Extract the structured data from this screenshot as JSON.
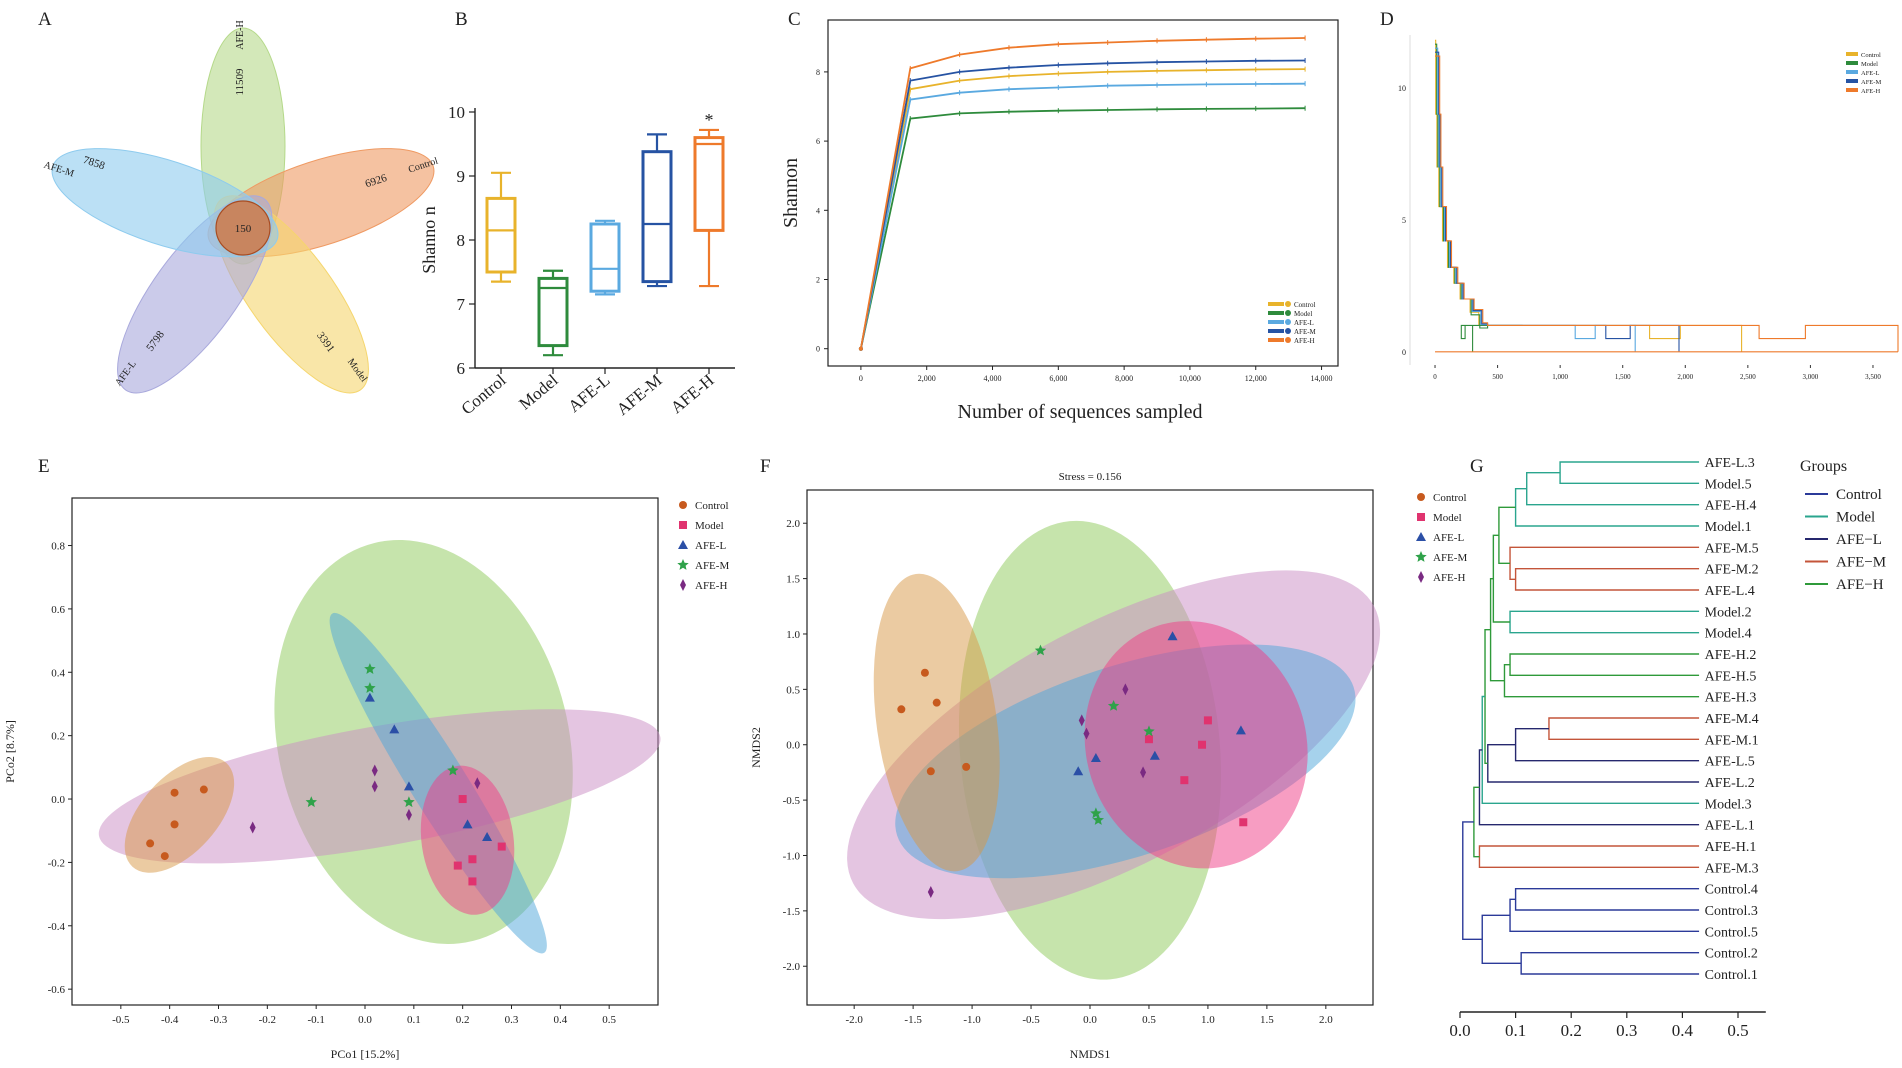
{
  "panel_letters": [
    "A",
    "B",
    "C",
    "D",
    "E",
    "F",
    "G"
  ],
  "chart_data": [
    {
      "panel": "A",
      "type": "venn",
      "sets": [
        {
          "name": "AFE-H",
          "unique": "11509",
          "color": "#b5d98a"
        },
        {
          "name": "Control",
          "unique": "6926",
          "color": "#ef9a63"
        },
        {
          "name": "Model",
          "unique": "3391",
          "color": "#f5d66e"
        },
        {
          "name": "AFE-L",
          "unique": "5798",
          "color": "#a9a9dc"
        },
        {
          "name": "AFE-M",
          "unique": "7858",
          "color": "#8ecbee"
        }
      ],
      "shared": "150"
    },
    {
      "panel": "B",
      "type": "box",
      "ylabel": "Shanno n",
      "ylim": [
        6,
        10
      ],
      "yticks": [
        "6",
        "7",
        "8",
        "9",
        "10"
      ],
      "categories": [
        "Control",
        "Model",
        "AFE-L",
        "AFE-M",
        "AFE-H"
      ],
      "colors": [
        "#e8b32b",
        "#2e8b3c",
        "#5aa9e0",
        "#2653a3",
        "#ee7a2b"
      ],
      "boxes": [
        {
          "min": 7.35,
          "q1": 7.5,
          "median": 8.15,
          "q3": 8.65,
          "max": 9.05
        },
        {
          "min": 6.2,
          "q1": 6.35,
          "median": 7.25,
          "q3": 7.4,
          "max": 7.52
        },
        {
          "min": 7.15,
          "q1": 7.2,
          "median": 7.55,
          "q3": 8.25,
          "max": 8.3
        },
        {
          "min": 7.28,
          "q1": 7.35,
          "median": 8.25,
          "q3": 9.38,
          "max": 9.65
        },
        {
          "min": 7.28,
          "q1": 8.15,
          "median": 9.5,
          "q3": 9.6,
          "max": 9.72
        }
      ],
      "annotation": "*"
    },
    {
      "panel": "C",
      "type": "line",
      "xlabel": "Number of sequences sampled",
      "ylabel": "Shannon",
      "xlim": [
        -1000,
        14500
      ],
      "ylim": [
        -0.5,
        9.5
      ],
      "xticks": [
        "0",
        "2,000",
        "4,000",
        "6,000",
        "8,000",
        "10,000",
        "12,000",
        "14,000"
      ],
      "yticks": [
        "0",
        "2",
        "4",
        "6",
        "8"
      ],
      "x": [
        0,
        1500,
        3000,
        4500,
        6000,
        7500,
        9000,
        10500,
        12000,
        13500
      ],
      "series": [
        {
          "name": "Control",
          "color": "#e8b32b",
          "values": [
            0,
            7.5,
            7.75,
            7.88,
            7.95,
            8.0,
            8.03,
            8.05,
            8.07,
            8.08
          ]
        },
        {
          "name": "Model",
          "color": "#2e8b3c",
          "values": [
            0,
            6.65,
            6.8,
            6.85,
            6.88,
            6.9,
            6.92,
            6.93,
            6.94,
            6.95
          ]
        },
        {
          "name": "AFE-L",
          "color": "#5aa9e0",
          "values": [
            0,
            7.2,
            7.4,
            7.5,
            7.55,
            7.6,
            7.62,
            7.64,
            7.65,
            7.66
          ]
        },
        {
          "name": "AFE-M",
          "color": "#2653a3",
          "values": [
            0,
            7.75,
            8.0,
            8.12,
            8.2,
            8.25,
            8.28,
            8.3,
            8.32,
            8.33
          ]
        },
        {
          "name": "AFE-H",
          "color": "#ee7a2b",
          "values": [
            0,
            8.1,
            8.5,
            8.7,
            8.8,
            8.85,
            8.9,
            8.93,
            8.96,
            8.98
          ]
        }
      ]
    },
    {
      "panel": "D",
      "type": "line",
      "xlim": [
        -200,
        3700
      ],
      "ylim": [
        -0.5,
        12
      ],
      "xticks": [
        "0",
        "500",
        "1,000",
        "1,500",
        "2,000",
        "2,500",
        "3,000",
        "3,500"
      ],
      "yticks": [
        "0",
        "5",
        "10"
      ],
      "series": [
        {
          "name": "Control",
          "color": "#e8b32b",
          "end": 2450
        },
        {
          "name": "Model",
          "color": "#2e8b3c",
          "end": 300
        },
        {
          "name": "AFE-L",
          "color": "#5aa9e0",
          "end": 1600
        },
        {
          "name": "AFE-M",
          "color": "#2653a3",
          "end": 1950
        },
        {
          "name": "AFE-H",
          "color": "#ee7a2b",
          "end": 3700
        }
      ]
    },
    {
      "panel": "E",
      "type": "scatter",
      "xlabel": "PCo1 [15.2%]",
      "ylabel": "PCo2 [8.7%]",
      "xlim": [
        -0.6,
        0.6
      ],
      "ylim": [
        -0.65,
        0.95
      ],
      "xticks": [
        "-0.5",
        "-0.4",
        "-0.3",
        "-0.2",
        "-0.1",
        "0.0",
        "0.1",
        "0.2",
        "0.3",
        "0.4",
        "0.5"
      ],
      "yticks": [
        "-0.6",
        "-0.4",
        "-0.2",
        "0.0",
        "0.2",
        "0.4",
        "0.6",
        "0.8"
      ],
      "groups": [
        {
          "name": "Control",
          "color": "#c75a1e",
          "points": [
            [
              -0.39,
              0.02
            ],
            [
              -0.33,
              0.03
            ],
            [
              -0.39,
              -0.08
            ],
            [
              -0.44,
              -0.14
            ],
            [
              -0.41,
              -0.18
            ]
          ]
        },
        {
          "name": "Model",
          "color": "#e0336f",
          "points": [
            [
              0.2,
              0.0
            ],
            [
              0.28,
              -0.15
            ],
            [
              0.22,
              -0.19
            ],
            [
              0.19,
              -0.21
            ],
            [
              0.22,
              -0.26
            ]
          ]
        },
        {
          "name": "AFE-L",
          "color": "#2b4fa6",
          "points": [
            [
              0.01,
              0.32
            ],
            [
              0.06,
              0.22
            ],
            [
              0.09,
              0.04
            ],
            [
              0.25,
              -0.12
            ],
            [
              0.21,
              -0.08
            ]
          ]
        },
        {
          "name": "AFE-M",
          "color": "#2fa24a",
          "points": [
            [
              0.01,
              0.41
            ],
            [
              0.01,
              0.35
            ],
            [
              -0.11,
              -0.01
            ],
            [
              0.09,
              -0.01
            ],
            [
              0.18,
              0.09
            ]
          ]
        },
        {
          "name": "AFE-H",
          "color": "#7a2a82",
          "points": [
            [
              0.02,
              0.09
            ],
            [
              0.02,
              0.04
            ],
            [
              0.09,
              -0.05
            ],
            [
              0.23,
              0.05
            ],
            [
              -0.23,
              -0.09
            ]
          ]
        }
      ]
    },
    {
      "panel": "F",
      "type": "scatter",
      "title": "Stress = 0.156",
      "xlabel": "NMDS1",
      "ylabel": "NMDS2",
      "xlim": [
        -2.4,
        2.4
      ],
      "ylim": [
        -2.35,
        2.3
      ],
      "xticks": [
        "-2.0",
        "-1.5",
        "-1.0",
        "-0.5",
        "0.0",
        "0.5",
        "1.0",
        "1.5",
        "2.0"
      ],
      "yticks": [
        "-2.0",
        "-1.5",
        "-1.0",
        "-0.5",
        "0.0",
        "0.5",
        "1.0",
        "1.5",
        "2.0"
      ],
      "groups": [
        {
          "name": "Control",
          "color": "#c75a1e",
          "points": [
            [
              -1.4,
              0.65
            ],
            [
              -1.3,
              0.38
            ],
            [
              -1.6,
              0.32
            ],
            [
              -1.35,
              -0.24
            ],
            [
              -1.05,
              -0.2
            ]
          ]
        },
        {
          "name": "Model",
          "color": "#e0336f",
          "points": [
            [
              1.0,
              0.22
            ],
            [
              0.95,
              0.0
            ],
            [
              0.5,
              0.05
            ],
            [
              0.8,
              -0.32
            ],
            [
              1.3,
              -0.7
            ]
          ]
        },
        {
          "name": "AFE-L",
          "color": "#2b4fa6",
          "points": [
            [
              0.7,
              0.98
            ],
            [
              1.28,
              0.13
            ],
            [
              0.05,
              -0.12
            ],
            [
              -0.1,
              -0.24
            ],
            [
              0.55,
              -0.1
            ]
          ]
        },
        {
          "name": "AFE-M",
          "color": "#2fa24a",
          "points": [
            [
              -0.42,
              0.85
            ],
            [
              0.05,
              -0.62
            ],
            [
              0.07,
              -0.68
            ],
            [
              0.5,
              0.12
            ],
            [
              0.2,
              0.35
            ]
          ]
        },
        {
          "name": "AFE-H",
          "color": "#7a2a82",
          "points": [
            [
              0.3,
              0.5
            ],
            [
              -0.07,
              0.22
            ],
            [
              -0.03,
              0.1
            ],
            [
              0.45,
              -0.25
            ],
            [
              -1.35,
              -1.33
            ]
          ]
        }
      ]
    },
    {
      "panel": "G",
      "type": "dendrogram",
      "legend_title": "Groups",
      "legend": [
        {
          "name": "Control",
          "color": "#2b3a99"
        },
        {
          "name": "Model",
          "color": "#2aa58e"
        },
        {
          "name": "AFE−L",
          "color": "#26286e"
        },
        {
          "name": "AFE−M",
          "color": "#c4553a"
        },
        {
          "name": "AFE−H",
          "color": "#2f9a3a"
        }
      ],
      "xlim": [
        0,
        0.55
      ],
      "xticks": [
        "0.0",
        "0.1",
        "0.2",
        "0.3",
        "0.4",
        "0.5"
      ],
      "leaves": [
        {
          "label": "AFE-L.3",
          "color": "#26286e"
        },
        {
          "label": "Model.5",
          "color": "#2aa58e"
        },
        {
          "label": "AFE-H.4",
          "color": "#2f9a3a"
        },
        {
          "label": "Model.1",
          "color": "#2aa58e"
        },
        {
          "label": "AFE-M.5",
          "color": "#c4553a"
        },
        {
          "label": "AFE-M.2",
          "color": "#c4553a"
        },
        {
          "label": "AFE-L.4",
          "color": "#26286e"
        },
        {
          "label": "Model.2",
          "color": "#2aa58e"
        },
        {
          "label": "Model.4",
          "color": "#2aa58e"
        },
        {
          "label": "AFE-H.2",
          "color": "#2f9a3a"
        },
        {
          "label": "AFE-H.5",
          "color": "#2f9a3a"
        },
        {
          "label": "AFE-H.3",
          "color": "#2f9a3a"
        },
        {
          "label": "AFE-M.4",
          "color": "#c4553a"
        },
        {
          "label": "AFE-M.1",
          "color": "#c4553a"
        },
        {
          "label": "AFE-L.5",
          "color": "#26286e"
        },
        {
          "label": "AFE-L.2",
          "color": "#26286e"
        },
        {
          "label": "Model.3",
          "color": "#2aa58e"
        },
        {
          "label": "AFE-L.1",
          "color": "#26286e"
        },
        {
          "label": "AFE-H.1",
          "color": "#2f9a3a"
        },
        {
          "label": "AFE-M.3",
          "color": "#c4553a"
        },
        {
          "label": "Control.4",
          "color": "#2b3a99"
        },
        {
          "label": "Control.3",
          "color": "#2b3a99"
        },
        {
          "label": "Control.5",
          "color": "#2b3a99"
        },
        {
          "label": "Control.2",
          "color": "#2b3a99"
        },
        {
          "label": "Control.1",
          "color": "#2b3a99"
        }
      ]
    }
  ]
}
